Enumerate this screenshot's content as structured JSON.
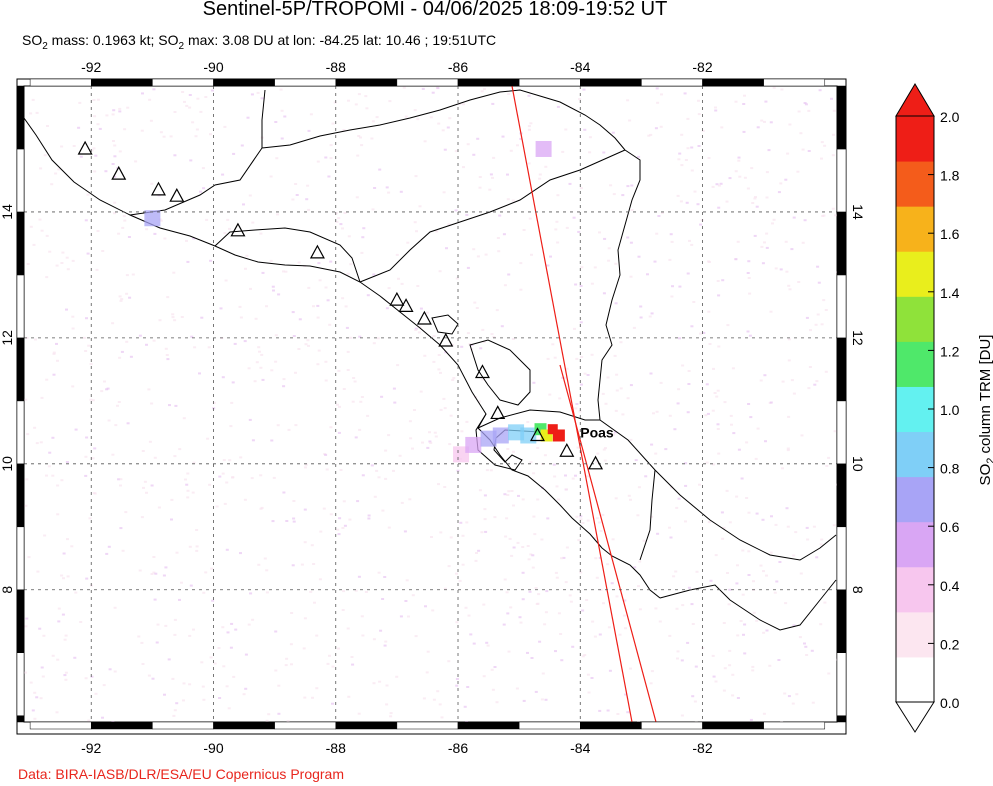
{
  "title": "Sentinel-5P/TROPOMI - 04/06/2025 18:09-19:52 UT",
  "subtitle": {
    "so2_mass_label": "SO",
    "so2_mass_sub": "2",
    "so2_mass_value": " mass: 0.1963 kt; SO",
    "so2_max_sub": "2",
    "so2_max_value": " max: 3.08 DU at lon: -84.25 lat: 10.46 ; 19:51UTC"
  },
  "credit": "Data: BIRA-IASB/DLR/ESA/EU Copernicus Program",
  "map": {
    "lon_range": [
      -93.1,
      -79.8
    ],
    "lat_range": [
      5.9,
      16.0
    ],
    "lon_ticks": [
      -92,
      -90,
      -88,
      -86,
      -84,
      -82
    ],
    "lat_ticks": [
      8,
      10,
      12,
      14
    ],
    "lon_tick_labels": [
      "-92",
      "-90",
      "-88",
      "-86",
      "-84",
      "-82"
    ],
    "lat_tick_labels": [
      "8",
      "10",
      "12",
      "14"
    ],
    "volcano_label": "Poas",
    "volcano_label_position": [
      -84.0,
      10.5
    ],
    "volcanoes": [
      [
        -92.1,
        15.0
      ],
      [
        -91.55,
        14.6
      ],
      [
        -90.9,
        14.35
      ],
      [
        -90.6,
        14.25
      ],
      [
        -89.6,
        13.7
      ],
      [
        -88.3,
        13.35
      ],
      [
        -87.0,
        12.6
      ],
      [
        -86.85,
        12.5
      ],
      [
        -86.55,
        12.3
      ],
      [
        -86.2,
        11.95
      ],
      [
        -85.6,
        11.45
      ],
      [
        -85.35,
        10.8
      ],
      [
        -84.7,
        10.45
      ],
      [
        -84.22,
        10.2
      ],
      [
        -83.75,
        10.0
      ]
    ],
    "plume": [
      {
        "lon": -84.45,
        "lat": 10.55,
        "du": 3.08
      },
      {
        "lon": -84.35,
        "lat": 10.45,
        "du": 2.0
      },
      {
        "lon": -84.55,
        "lat": 10.45,
        "du": 1.5
      },
      {
        "lon": -84.65,
        "lat": 10.55,
        "du": 1.1
      },
      {
        "lon": -84.85,
        "lat": 10.45,
        "du": 0.9
      },
      {
        "lon": -85.05,
        "lat": 10.5,
        "du": 0.8
      },
      {
        "lon": -85.3,
        "lat": 10.45,
        "du": 0.7
      },
      {
        "lon": -85.5,
        "lat": 10.4,
        "du": 0.6
      },
      {
        "lon": -85.75,
        "lat": 10.3,
        "du": 0.5
      },
      {
        "lon": -85.95,
        "lat": 10.15,
        "du": 0.4
      },
      {
        "lon": -91.0,
        "lat": 13.9,
        "du": 0.6
      },
      {
        "lon": -84.6,
        "lat": 15.0,
        "du": 0.5
      }
    ]
  },
  "colorbar": {
    "label": "SO",
    "label_sub": "2",
    "label_rest": " column TRM [DU]",
    "min": 0.0,
    "max": 2.0,
    "ticks": [
      "0.0",
      "0.2",
      "0.4",
      "0.6",
      "0.8",
      "1.0",
      "1.2",
      "1.4",
      "1.6",
      "1.8",
      "2.0"
    ],
    "colors": [
      "#ffffff",
      "#fce6f0",
      "#f7c6ee",
      "#d9a6f4",
      "#a8a4f6",
      "#7fcff7",
      "#63f1f0",
      "#4fe86a",
      "#8fe23a",
      "#e9ee1c",
      "#f7b21b",
      "#f45c1b",
      "#ee1e17"
    ]
  }
}
